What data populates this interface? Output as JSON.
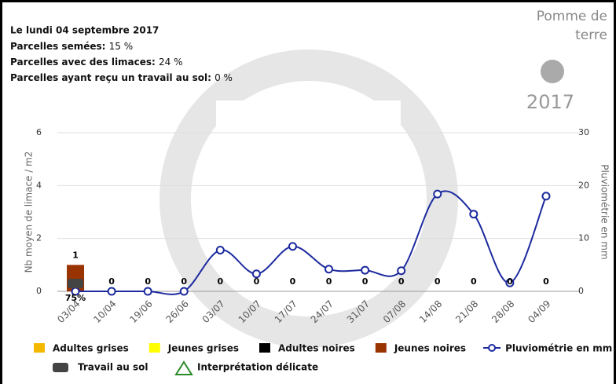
{
  "header": {
    "date": "Le lundi 04 septembre 2017",
    "lines": [
      {
        "label": "Parcelles semées:",
        "value": "15 %"
      },
      {
        "label": "Parcelles avec des limaces:",
        "value": "24 %"
      },
      {
        "label": "Parcelles ayant reçu un travail au sol:",
        "value": "0 %"
      }
    ],
    "crop": "Pomme de terre",
    "year": "2017"
  },
  "chart_data": {
    "type": "combo",
    "categories": [
      "03/04",
      "10/04",
      "19/06",
      "26/06",
      "03/07",
      "10/07",
      "17/07",
      "24/07",
      "31/07",
      "07/08",
      "14/08",
      "21/08",
      "28/08",
      "04/09"
    ],
    "ylabel": "Nb moyen de limace / m2",
    "y2label": "Pluviométrie en mm",
    "ylim": [
      0,
      6
    ],
    "yticks": [
      0,
      2,
      4,
      6
    ],
    "y2lim": [
      0,
      30
    ],
    "y2ticks": [
      0,
      10,
      20,
      30
    ],
    "grid": true,
    "series": [
      {
        "name": "Adultes grises",
        "color": "#f5b800",
        "type": "bar",
        "values": [
          0,
          0,
          0,
          0,
          0,
          0,
          0,
          0,
          0,
          0,
          0,
          0,
          0,
          0
        ]
      },
      {
        "name": "Jeunes grises",
        "color": "#ffff00",
        "type": "bar",
        "values": [
          0,
          0,
          0,
          0,
          0,
          0,
          0,
          0,
          0,
          0,
          0,
          0,
          0,
          0
        ]
      },
      {
        "name": "Adultes noires",
        "color": "#000000",
        "type": "bar",
        "values": [
          0,
          0,
          0,
          0,
          0,
          0,
          0,
          0,
          0,
          0,
          0,
          0,
          0,
          0
        ]
      },
      {
        "name": "Jeunes noires",
        "color": "#993300",
        "type": "bar",
        "values": [
          1,
          0,
          0,
          0,
          0,
          0,
          0,
          0,
          0,
          0,
          0,
          0,
          0,
          0
        ]
      },
      {
        "name": "Pluviométrie en mm",
        "color": "#1c2a9e",
        "type": "line",
        "axis": "y2",
        "values": [
          0,
          0,
          0,
          0,
          7.8,
          3.3,
          8.5,
          4.2,
          4,
          3.9,
          18.4,
          14.6,
          1.6,
          18
        ]
      }
    ],
    "travail": {
      "name": "Travail au sol",
      "values": [
        75,
        null,
        null,
        null,
        null,
        null,
        null,
        null,
        null,
        null,
        null,
        null,
        null,
        null
      ],
      "value_labels": [
        "75%",
        null,
        null,
        null,
        null,
        null,
        null,
        null,
        null,
        null,
        null,
        null,
        null,
        null
      ]
    },
    "caution_legend": "Interprétation délicate"
  }
}
